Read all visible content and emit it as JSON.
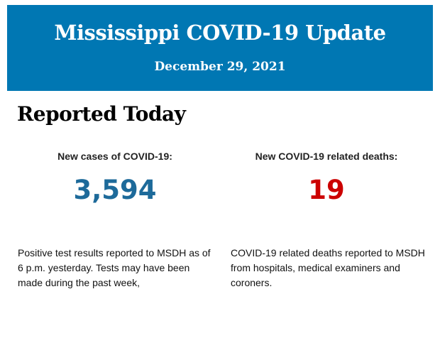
{
  "header": {
    "title": "Mississippi COVID-19 Update",
    "date": "December 29, 2021"
  },
  "section_title": "Reported Today",
  "cases": {
    "label": "New cases of COVID-19:",
    "value": "3,594",
    "color": "#1d6a9a",
    "description": "Positive test results reported to MSDH as of 6 p.m. yesterday. Tests may have been made during the past week,"
  },
  "deaths": {
    "label": "New COVID-19 related deaths:",
    "value": "19",
    "color": "#cc0000",
    "description": "COVID-19 related deaths reported to MSDH from hospitals, medical examiners and coroners."
  }
}
